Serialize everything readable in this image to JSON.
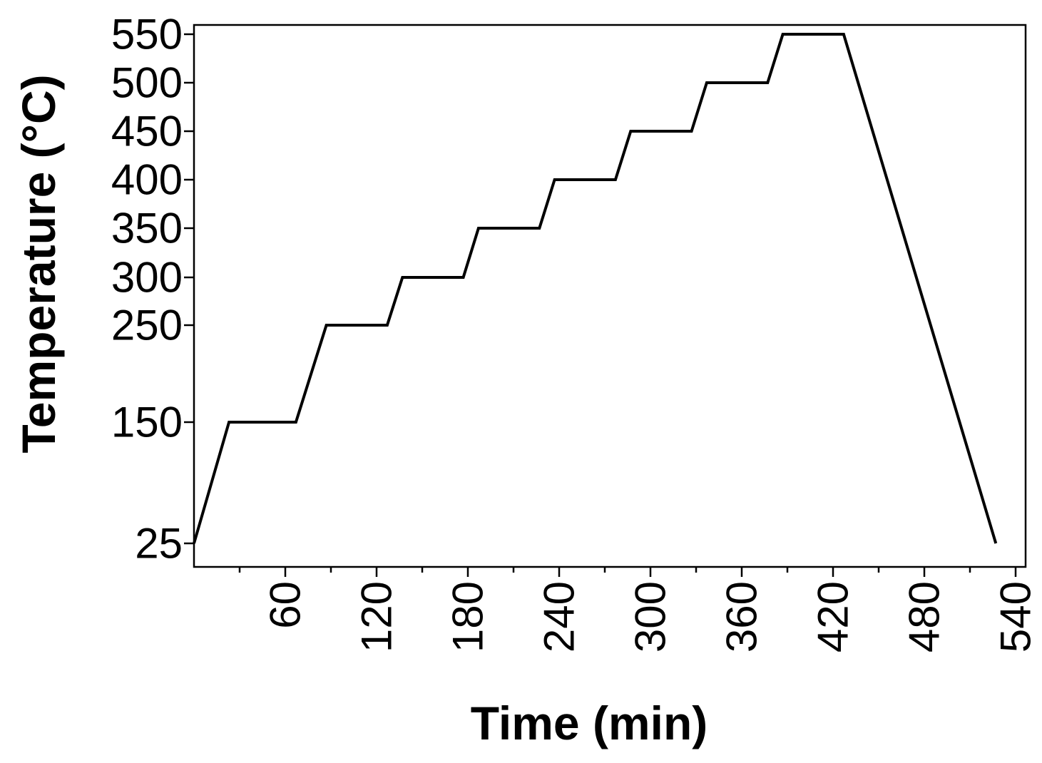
{
  "chart_data": {
    "type": "line",
    "title": "",
    "xlabel": "Time (min)",
    "ylabel": "Temperature (°C)",
    "xlim": [
      0,
      540
    ],
    "ylim": [
      0,
      550
    ],
    "x_ticks": [
      60,
      120,
      180,
      240,
      300,
      360,
      420,
      480,
      540
    ],
    "x_minor_ticks": [
      30,
      90,
      150,
      210,
      270,
      330,
      390,
      450,
      510
    ],
    "y_ticks": [
      25,
      150,
      250,
      300,
      350,
      400,
      450,
      500,
      550
    ],
    "grid": false,
    "series": [
      {
        "name": "",
        "color": "#000000",
        "x": [
          0,
          23,
          67,
          87,
          127,
          137,
          177,
          187,
          227,
          237,
          277,
          287,
          327,
          337,
          377,
          387,
          427,
          527
        ],
        "y": [
          25,
          150,
          150,
          250,
          250,
          300,
          300,
          350,
          350,
          400,
          400,
          450,
          450,
          500,
          500,
          550,
          550,
          25
        ]
      }
    ]
  }
}
